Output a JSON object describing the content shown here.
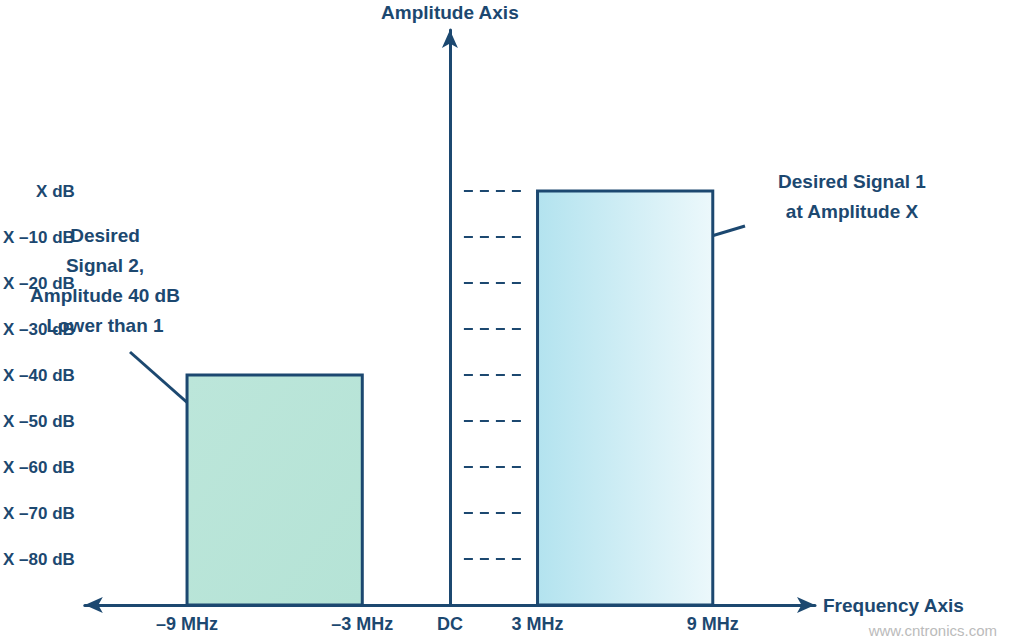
{
  "chart_data": {
    "type": "bar",
    "x_label": "Frequency Axis",
    "y_label": "Amplitude Axis",
    "xlim": [
      -12.5,
      12.5
    ],
    "xticks": [
      {
        "value": -9,
        "label": "–9 MHz"
      },
      {
        "value": -3,
        "label": "–3 MHz"
      },
      {
        "value": 0,
        "label": "DC"
      },
      {
        "value": 3,
        "label": "3 MHz"
      },
      {
        "value": 9,
        "label": "9 MHz"
      }
    ],
    "ylim": [
      -90,
      35
    ],
    "yticks": [
      {
        "value": 0,
        "label": "X dB"
      },
      {
        "value": -10,
        "label": "X –10 dB"
      },
      {
        "value": -20,
        "label": "X –20 dB"
      },
      {
        "value": -30,
        "label": "X –30 dB"
      },
      {
        "value": -40,
        "label": "X –40 dB"
      },
      {
        "value": -50,
        "label": "X –50 dB"
      },
      {
        "value": -60,
        "label": "X –60 dB"
      },
      {
        "value": -70,
        "label": "X –70 dB"
      },
      {
        "value": -80,
        "label": "X –80 dB"
      }
    ],
    "grid": true,
    "bands": [
      {
        "from": 3,
        "to": 9,
        "value": 0,
        "color": "#b3e3ef",
        "label": "Desired Signal 1\nat Amplitude X"
      },
      {
        "from": -9,
        "to": -3,
        "value": -40,
        "color": "#b5e3d6",
        "label": "Desired\nSignal 2,\nAmplitude 40 dB\nLower than 1"
      }
    ],
    "watermark": "www.cntronics.com"
  }
}
